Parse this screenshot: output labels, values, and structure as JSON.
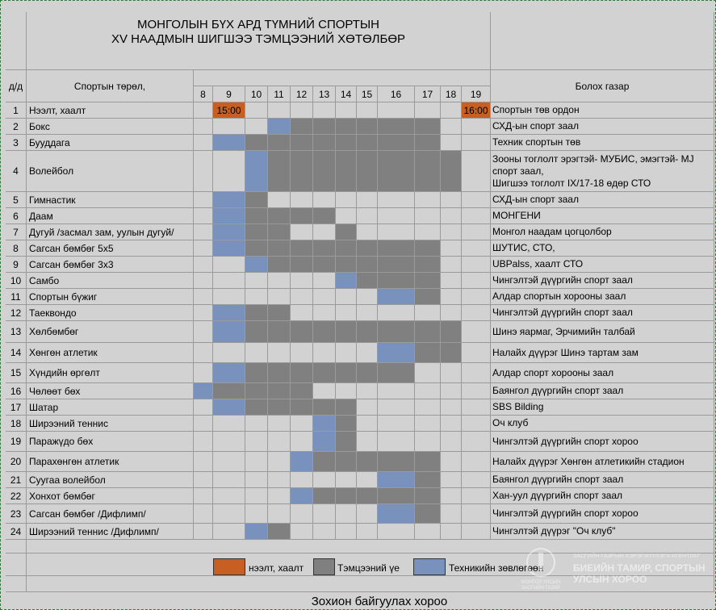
{
  "title": "МОНГОЛЫН БҮХ АРД ТҮМНИЙ СПОРТЫН\nXV  НААДМЫН ШИГШЭЭ ТЭМЦЭЭНИЙ ХӨТӨЛБӨР",
  "headers": {
    "num": "д/д",
    "sport": "Спортын төрөл,",
    "venue": "Болох газар"
  },
  "days": [
    "8",
    "9",
    "10",
    "11",
    "12",
    "13",
    "14",
    "15",
    "16",
    "17",
    "18",
    "19"
  ],
  "rows": [
    {
      "n": "1",
      "name": "Нээлт, хаалт",
      "venue": "Спортын төв ордон",
      "cells": [
        "",
        "o",
        "",
        "",
        "",
        "",
        "",
        "",
        "",
        "",
        "",
        "o"
      ],
      "labels": {
        "1": "15:00",
        "11": "16:00"
      }
    },
    {
      "n": "2",
      "name": "Бокс",
      "venue": "СХД-ын спорт заал",
      "cells": [
        "",
        "",
        "",
        "b",
        "g",
        "g",
        "g",
        "g",
        "g",
        "g",
        "",
        ""
      ]
    },
    {
      "n": "3",
      "name": "Бууддага",
      "venue": "Техник спортын төв",
      "cells": [
        "",
        "b",
        "g",
        "g",
        "g",
        "g",
        "g",
        "g",
        "g",
        "g",
        "",
        ""
      ]
    },
    {
      "n": "4",
      "name": "Волейбол",
      "venue": "Зооны тоглолт эрэгтэй- МУБИС, эмэгтэй- MJ\nспорт заал,\nШигшээ тоглолт IX/17-18 өдөр СТО",
      "cells": [
        "",
        "",
        "b",
        "g",
        "g",
        "g",
        "g",
        "g",
        "g",
        "g",
        "g",
        ""
      ]
    },
    {
      "n": "5",
      "name": "Гимнастик",
      "venue": "СХД-ын спорт заал",
      "cells": [
        "",
        "b",
        "g",
        "",
        "",
        "",
        "",
        "",
        "",
        "",
        "",
        ""
      ]
    },
    {
      "n": "6",
      "name": "Даам",
      "venue": "МОНГЕНИ",
      "cells": [
        "",
        "b",
        "g",
        "g",
        "g",
        "g",
        "",
        "",
        "",
        "",
        "",
        ""
      ]
    },
    {
      "n": "7",
      "name": "Дугуй /засмал зам, уулын дугуй/",
      "venue": "Монгол наадам цогцолбор",
      "cells": [
        "",
        "b",
        "g",
        "g",
        "",
        "",
        "g",
        "",
        "",
        "",
        "",
        ""
      ]
    },
    {
      "n": "8",
      "name": "Сагсан бөмбөг 5х5",
      "venue": "ШУТИС, СТО,",
      "cells": [
        "",
        "b",
        "g",
        "g",
        "g",
        "g",
        "g",
        "g",
        "g",
        "g",
        "",
        ""
      ]
    },
    {
      "n": "9",
      "name": "Сагсан бөмбөг 3х3",
      "venue": "UBPalss, хаалт СТО",
      "cells": [
        "",
        "",
        "b",
        "g",
        "g",
        "g",
        "g",
        "g",
        "g",
        "g",
        "",
        ""
      ]
    },
    {
      "n": "10",
      "name": "Самбо",
      "venue": "Чингэлтэй дүүргийн  спорт заал",
      "cells": [
        "",
        "",
        "",
        "",
        "",
        "",
        "b",
        "g",
        "g",
        "g",
        "",
        ""
      ]
    },
    {
      "n": "11",
      "name": "Спортын бүжиг",
      "venue": "Алдар спортын хорооны заал",
      "cells": [
        "",
        "",
        "",
        "",
        "",
        "",
        "",
        "",
        "b",
        "g",
        "",
        ""
      ]
    },
    {
      "n": "12",
      "name": "Таеквондо",
      "venue": "Чингэлтэй дүүргийн спорт заал",
      "cells": [
        "",
        "b",
        "g",
        "g",
        "",
        "",
        "",
        "",
        "",
        "",
        "",
        ""
      ]
    },
    {
      "n": "13",
      "name": "Хөлбөмбөг",
      "venue": "Шинэ яармаг,  Эрчимийн талбай",
      "cells": [
        "",
        "b",
        "g",
        "g",
        "g",
        "g",
        "g",
        "g",
        "g",
        "g",
        "g",
        ""
      ]
    },
    {
      "n": "14",
      "name": "Хөнгөн атлетик",
      "venue": "Налайх дүүрэг Шинэ тартам зам",
      "cells": [
        "",
        "",
        "",
        "",
        "",
        "",
        "",
        "",
        "b",
        "g",
        "g",
        ""
      ]
    },
    {
      "n": "15",
      "name": "Хүндийн өргөлт",
      "venue": "Алдар спорт хорооны заал",
      "cells": [
        "",
        "b",
        "g",
        "g",
        "g",
        "g",
        "g",
        "g",
        "g",
        "",
        "",
        ""
      ]
    },
    {
      "n": "16",
      "name": "Чөлөөт бөх",
      "venue": "Баянгол дүүргийн спорт заал",
      "cells": [
        "b",
        "g",
        "g",
        "g",
        "g",
        "",
        "",
        "",
        "",
        "",
        "",
        ""
      ]
    },
    {
      "n": "17",
      "name": "Шатар",
      "venue": "SBS Bilding",
      "cells": [
        "",
        "b",
        "g",
        "g",
        "g",
        "g",
        "g",
        "",
        "",
        "",
        "",
        ""
      ]
    },
    {
      "n": "18",
      "name": "Ширээний теннис",
      "venue": "Оч клуб",
      "cells": [
        "",
        "",
        "",
        "",
        "",
        "b",
        "g",
        "",
        "",
        "",
        "",
        ""
      ]
    },
    {
      "n": "19",
      "name": "Паражүдо бөх",
      "venue": "Чингэлтэй дүүргийн спорт хороо",
      "cells": [
        "",
        "",
        "",
        "",
        "",
        "b",
        "g",
        "",
        "",
        "",
        "",
        ""
      ]
    },
    {
      "n": "20",
      "name": "Парахөнгөн атлетик",
      "venue": "Налайх дүүрэг Хөнгөн атлетикийн стадион",
      "cells": [
        "",
        "",
        "",
        "",
        "b",
        "g",
        "g",
        "g",
        "g",
        "g",
        "",
        ""
      ]
    },
    {
      "n": "21",
      "name": "Суугаа волейбол",
      "venue": "Баянгол дүүргийн спорт заал",
      "cells": [
        "",
        "",
        "",
        "",
        "",
        "",
        "",
        "",
        "b",
        "g",
        "",
        ""
      ]
    },
    {
      "n": "22",
      "name": "Хонхот бөмбөг",
      "venue": "Хан-уул дүүргийн спорт заал",
      "cells": [
        "",
        "",
        "",
        "",
        "b",
        "g",
        "g",
        "g",
        "g",
        "g",
        "",
        ""
      ]
    },
    {
      "n": "23",
      "name": "Сагсан бөмбөг /Дифлимп/",
      "venue": "Чингэлтэй дүүргийн спорт хороо",
      "cells": [
        "",
        "",
        "",
        "",
        "",
        "",
        "",
        "",
        "b",
        "g",
        "",
        ""
      ]
    },
    {
      "n": "24",
      "name": "Ширээний теннис /Дифлимп/",
      "venue": "Чингэлтэй дүүрэг \"Оч клуб\"",
      "cells": [
        "",
        "",
        "b",
        "g",
        "",
        "",
        "",
        "",
        "",
        "",
        "",
        ""
      ]
    }
  ],
  "legend": [
    {
      "color": "#c65f21",
      "label": "нээлт, хаалт"
    },
    {
      "color": "#808080",
      "label": "Тэмцээний үе"
    },
    {
      "color": "#7891bd",
      "label": "Техникийн зөвлөгөөн"
    }
  ],
  "footer": "Зохион байгуулах хороо",
  "watermark": {
    "emblem_text": "МОНГОЛ УЛСЫН\nЗАСГИЙН ГАЗАР",
    "org_small": "ЗАСГИЙН ГАЗРЫН ХЭРЭГЖҮҮЛЭГЧ АГЕНТЛАГ",
    "org_name": "БИЕИЙН ТАМИР, СПОРТЫН\nУЛСЫН ХОРОО"
  },
  "colors": {
    "orange": "#c65f21",
    "gray": "#808080",
    "blue": "#7891bd",
    "background": "#d2d2d2"
  }
}
